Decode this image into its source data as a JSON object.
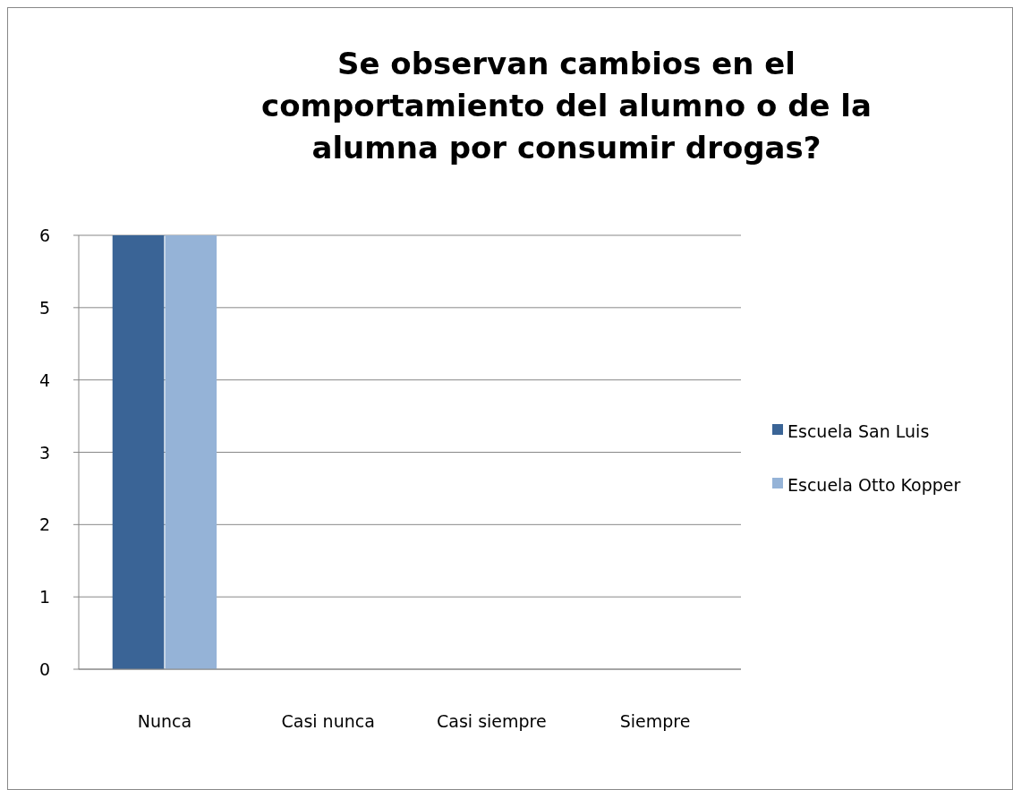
{
  "chart_data": {
    "type": "bar",
    "title": "Se observan cambios en el comportamiento del alumno o de la alumna por consumir drogas?",
    "categories": [
      "Nunca",
      "Casi nunca",
      "Casi siempre",
      "Siempre"
    ],
    "series": [
      {
        "name": "Escuela San Luis",
        "color": "#3a6496",
        "values": [
          6,
          0,
          0,
          0
        ]
      },
      {
        "name": "Escuela Otto Kopper",
        "color": "#95b3d7",
        "values": [
          6,
          0,
          0,
          0
        ]
      }
    ],
    "ylim": [
      0,
      6
    ],
    "yticks": [
      0,
      1,
      2,
      3,
      4,
      5,
      6
    ],
    "grid": "y",
    "legend": "right"
  }
}
